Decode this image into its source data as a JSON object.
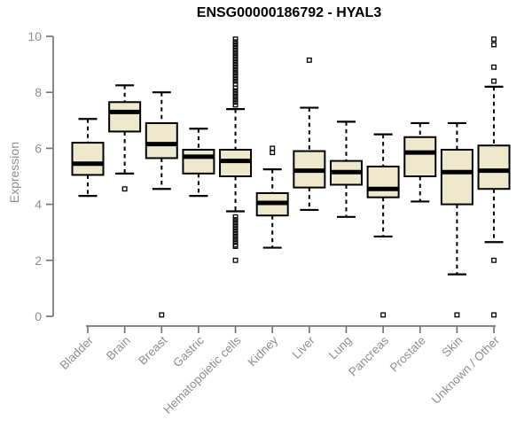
{
  "chart_data": {
    "type": "boxplot",
    "title": "ENSG00000186792 - HYAL3",
    "ylabel": "Expression",
    "xlabel": "",
    "ylim": [
      0,
      10
    ],
    "yticks": [
      0,
      2,
      4,
      6,
      8,
      10
    ],
    "grid": false,
    "legend": "none",
    "colors": {
      "box_fill": "#EEE8CD",
      "box_stroke": "#000000",
      "axis_line": "#757575",
      "axis_text": "#8b8f96",
      "title_text": "#000000"
    },
    "categories": [
      "Bladder",
      "Brain",
      "Breast",
      "Gastric",
      "Hematopoietic cells",
      "Kidney",
      "Liver",
      "Lung",
      "Pancreas",
      "Prostate",
      "Skin",
      "Unknown / Other"
    ],
    "series": [
      {
        "name": "Bladder",
        "low": 4.3,
        "q1": 5.05,
        "median": 5.45,
        "q3": 6.2,
        "high": 7.05,
        "outliers": []
      },
      {
        "name": "Brain",
        "low": 5.1,
        "q1": 6.6,
        "median": 7.3,
        "q3": 7.65,
        "high": 8.25,
        "outliers": [
          4.55
        ]
      },
      {
        "name": "Breast",
        "low": 4.55,
        "q1": 5.65,
        "median": 6.15,
        "q3": 6.9,
        "high": 8.0,
        "outliers": [
          0.05
        ]
      },
      {
        "name": "Gastric",
        "low": 4.3,
        "q1": 5.1,
        "median": 5.7,
        "q3": 5.95,
        "high": 6.7,
        "outliers": []
      },
      {
        "name": "Hematopoietic cells",
        "low": 3.75,
        "q1": 5.0,
        "median": 5.55,
        "q3": 5.95,
        "high": 7.4,
        "outliers": [
          9.9,
          9.8,
          9.7,
          9.6,
          9.5,
          9.4,
          9.3,
          9.2,
          9.1,
          9.0,
          8.9,
          8.8,
          8.7,
          8.6,
          8.5,
          8.4,
          8.3,
          8.15,
          8.05,
          7.95,
          7.85,
          7.75,
          7.65,
          7.55,
          3.55,
          3.45,
          3.35,
          3.25,
          3.15,
          3.05,
          2.95,
          2.85,
          2.75,
          2.65,
          2.55,
          2.5,
          2.0
        ]
      },
      {
        "name": "Kidney",
        "low": 2.45,
        "q1": 3.6,
        "median": 4.05,
        "q3": 4.4,
        "high": 5.25,
        "outliers": [
          5.85,
          6.0
        ]
      },
      {
        "name": "Liver",
        "low": 3.8,
        "q1": 4.6,
        "median": 5.2,
        "q3": 5.9,
        "high": 7.45,
        "outliers": [
          9.15
        ]
      },
      {
        "name": "Lung",
        "low": 3.55,
        "q1": 4.7,
        "median": 5.15,
        "q3": 5.55,
        "high": 6.95,
        "outliers": []
      },
      {
        "name": "Pancreas",
        "low": 2.85,
        "q1": 4.25,
        "median": 4.55,
        "q3": 5.35,
        "high": 6.5,
        "outliers": [
          0.05
        ]
      },
      {
        "name": "Prostate",
        "low": 4.1,
        "q1": 5.0,
        "median": 5.85,
        "q3": 6.4,
        "high": 6.9,
        "outliers": []
      },
      {
        "name": "Skin",
        "low": 1.5,
        "q1": 4.0,
        "median": 5.15,
        "q3": 5.95,
        "high": 6.9,
        "outliers": [
          0.05
        ]
      },
      {
        "name": "Unknown / Other",
        "low": 2.65,
        "q1": 4.55,
        "median": 5.2,
        "q3": 6.1,
        "high": 8.2,
        "outliers": [
          8.4,
          8.9,
          9.7,
          9.9,
          2.0,
          0.05
        ]
      }
    ]
  }
}
